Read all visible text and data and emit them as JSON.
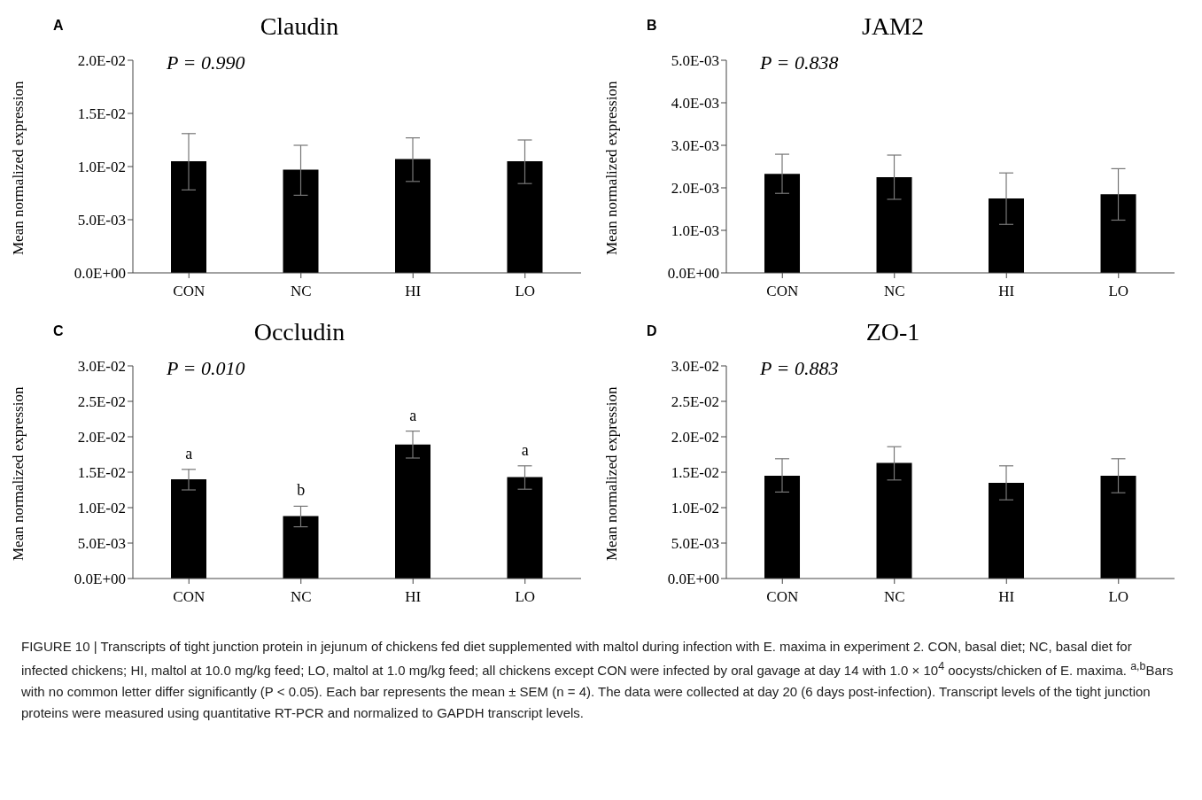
{
  "chart_data": [
    {
      "type": "bar",
      "title": "Claudin",
      "ylabel": "Mean normalized expression",
      "categories": [
        "CON",
        "NC",
        "HI",
        "LO"
      ],
      "values": [
        0.0105,
        0.0097,
        0.0107,
        0.0105
      ],
      "errors": [
        [
          0.0078,
          0.0131
        ],
        [
          0.0073,
          0.012
        ],
        [
          0.0086,
          0.0127
        ],
        [
          0.0084,
          0.0125
        ]
      ],
      "color": "#000000",
      "ylim": [
        0,
        0.02
      ],
      "yticks": [
        {
          "value": 0,
          "label": "0.0E+00"
        },
        {
          "value": 0.005,
          "label": "5.0E-03"
        },
        {
          "value": 0.01,
          "label": "1.0E-02"
        },
        {
          "value": 0.015,
          "label": "1.5E-02"
        },
        {
          "value": 0.02,
          "label": "2.0E-02"
        }
      ],
      "grid": false,
      "legend": false,
      "annotations": [
        "A",
        "P = 0.990"
      ]
    },
    {
      "type": "bar",
      "title": "JAM2",
      "ylabel": "Mean normalized expression",
      "categories": [
        "CON",
        "NC",
        "HI",
        "LO"
      ],
      "values": [
        0.00233,
        0.00225,
        0.00175,
        0.00185
      ],
      "errors": [
        [
          0.00187,
          0.00279
        ],
        [
          0.00173,
          0.00277
        ],
        [
          0.00114,
          0.00235
        ],
        [
          0.00124,
          0.00245
        ]
      ],
      "color": "#000000",
      "ylim": [
        0,
        0.005
      ],
      "yticks": [
        {
          "value": 0,
          "label": "0.0E+00"
        },
        {
          "value": 0.001,
          "label": "1.0E-03"
        },
        {
          "value": 0.002,
          "label": "2.0E-03"
        },
        {
          "value": 0.003,
          "label": "3.0E-03"
        },
        {
          "value": 0.004,
          "label": "4.0E-03"
        },
        {
          "value": 0.005,
          "label": "5.0E-03"
        }
      ],
      "grid": false,
      "legend": false,
      "annotations": [
        "B",
        "P = 0.838"
      ]
    },
    {
      "type": "bar",
      "title": "Occludin",
      "ylabel": "Mean normalized expression",
      "categories": [
        "CON",
        "NC",
        "HI",
        "LO"
      ],
      "values": [
        0.014,
        0.0088,
        0.0189,
        0.0143
      ],
      "errors": [
        [
          0.0125,
          0.0154
        ],
        [
          0.0073,
          0.0102
        ],
        [
          0.017,
          0.0208
        ],
        [
          0.0126,
          0.0159
        ]
      ],
      "color": "#000000",
      "ylim": [
        0,
        0.03
      ],
      "yticks": [
        {
          "value": 0,
          "label": "0.0E+00"
        },
        {
          "value": 0.005,
          "label": "5.0E-03"
        },
        {
          "value": 0.01,
          "label": "1.0E-02"
        },
        {
          "value": 0.015,
          "label": "1.5E-02"
        },
        {
          "value": 0.02,
          "label": "2.0E-02"
        },
        {
          "value": 0.025,
          "label": "2.5E-02"
        },
        {
          "value": 0.03,
          "label": "3.0E-02"
        }
      ],
      "grid": false,
      "legend": false,
      "value_labels": [
        "a",
        "b",
        "a",
        "a"
      ],
      "annotations": [
        "C",
        "P = 0.010"
      ]
    },
    {
      "type": "bar",
      "title": "ZO-1",
      "ylabel": "Mean normalized expression",
      "categories": [
        "CON",
        "NC",
        "HI",
        "LO"
      ],
      "values": [
        0.0145,
        0.0163,
        0.0135,
        0.0145
      ],
      "errors": [
        [
          0.0122,
          0.0169
        ],
        [
          0.0139,
          0.0186
        ],
        [
          0.0111,
          0.0159
        ],
        [
          0.0121,
          0.0169
        ]
      ],
      "color": "#000000",
      "ylim": [
        0,
        0.03
      ],
      "yticks": [
        {
          "value": 0,
          "label": "0.0E+00"
        },
        {
          "value": 0.005,
          "label": "5.0E-03"
        },
        {
          "value": 0.01,
          "label": "1.0E-02"
        },
        {
          "value": 0.015,
          "label": "1.5E-02"
        },
        {
          "value": 0.02,
          "label": "2.0E-02"
        },
        {
          "value": 0.025,
          "label": "2.5E-02"
        },
        {
          "value": 0.03,
          "label": "3.0E-02"
        }
      ],
      "grid": false,
      "legend": false,
      "annotations": [
        "D",
        "P = 0.883",
        "FIGURE 10 | Transcripts of tight junction protein in jejunum of chickens fed diet supplemented with maltol during infection with E. maxima in experiment 2. CON, basal diet; NC, basal diet for infected chickens; HI, maltol at 10.0 mg/kg feed; LO, maltol at 1.0 mg/kg feed; all chickens except CON were infected by oral gavage at day 14 with 1.0 × 10$^{4}$ oocysts/chicken of E. maxima. $^{a,b}$Bars with no common letter differ significantly (P < 0.05). Each bar represents the mean ± SEM (n = 4). The data were collected at day 20 (6 days post-infection). Transcript levels of the tight junction proteins were measured using quantitative RT-PCR and normalized to GAPDH transcript levels."
      ]
    }
  ]
}
